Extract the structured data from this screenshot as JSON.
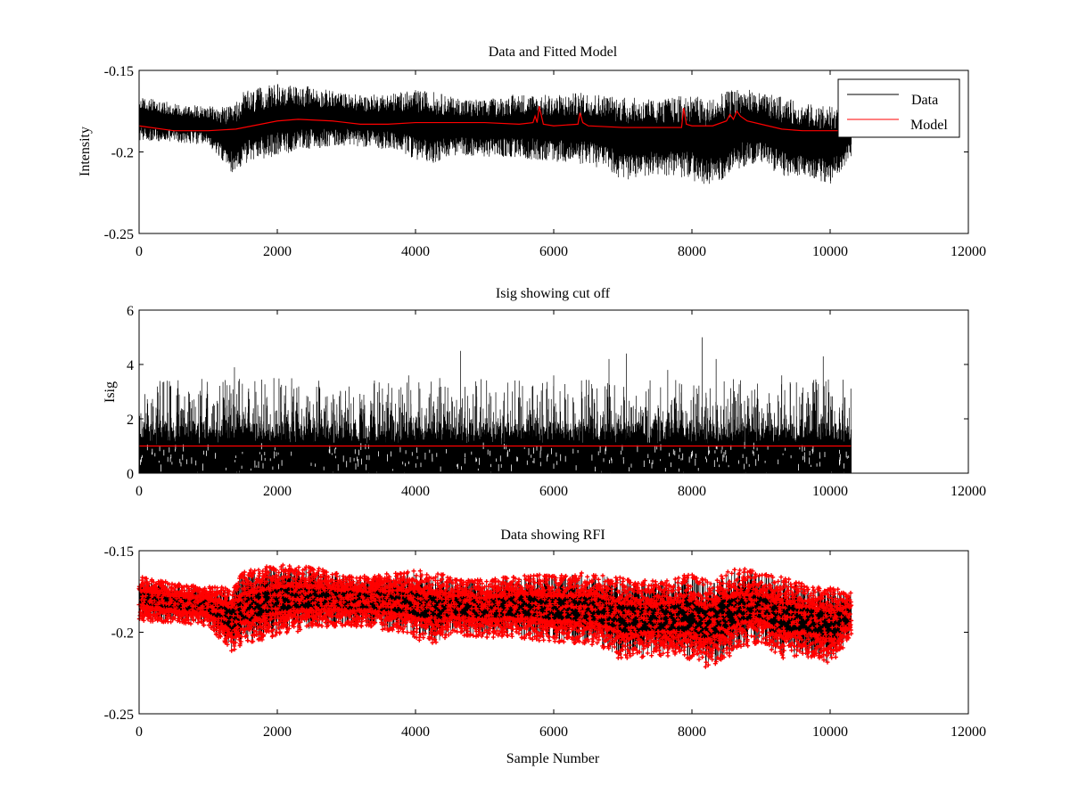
{
  "figure": {
    "background": "#ffffff",
    "colors": {
      "data": "#000000",
      "model": "#ff0000",
      "rfi": "#ff0000",
      "cutoff": "#ff0000"
    }
  },
  "chart_data": [
    {
      "type": "line",
      "title": "Data and Fitted Model",
      "xlabel": "",
      "ylabel": "Intensity",
      "xlim": [
        0,
        12000
      ],
      "ylim": [
        -0.25,
        -0.15
      ],
      "x_ticks": [
        0,
        2000,
        4000,
        6000,
        8000,
        10000,
        12000
      ],
      "x_tick_labels": [
        "0",
        "2000",
        "4000",
        "6000",
        "8000",
        "10000",
        "12000"
      ],
      "y_ticks": [
        -0.25,
        -0.2,
        -0.15
      ],
      "y_tick_labels": [
        "-0.25",
        "-0.2",
        "-0.15"
      ],
      "legend": {
        "placement": "top-right",
        "entries": [
          "Data",
          "Model"
        ]
      },
      "series": [
        {
          "name": "Data",
          "style": "noise-band",
          "n_samples": 10300,
          "x": [
            0,
            500,
            1000,
            1350,
            1500,
            2000,
            2500,
            3000,
            3300,
            3800,
            4000,
            4300,
            4500,
            5000,
            5500,
            6000,
            6500,
            6800,
            7000,
            7500,
            8000,
            8200,
            8500,
            8700,
            9000,
            9300,
            9600,
            10000,
            10300
          ],
          "lower": [
            -0.193,
            -0.194,
            -0.196,
            -0.213,
            -0.208,
            -0.202,
            -0.198,
            -0.196,
            -0.197,
            -0.2,
            -0.205,
            -0.207,
            -0.202,
            -0.203,
            -0.204,
            -0.206,
            -0.208,
            -0.212,
            -0.218,
            -0.214,
            -0.217,
            -0.222,
            -0.216,
            -0.21,
            -0.206,
            -0.216,
            -0.214,
            -0.22,
            -0.203
          ],
          "upper": [
            -0.166,
            -0.17,
            -0.172,
            -0.172,
            -0.163,
            -0.158,
            -0.16,
            -0.164,
            -0.165,
            -0.163,
            -0.162,
            -0.163,
            -0.166,
            -0.168,
            -0.164,
            -0.165,
            -0.163,
            -0.165,
            -0.166,
            -0.168,
            -0.164,
            -0.168,
            -0.163,
            -0.16,
            -0.164,
            -0.166,
            -0.17,
            -0.172,
            -0.175
          ]
        },
        {
          "name": "Model",
          "x": [
            0,
            500,
            1000,
            1400,
            2000,
            2300,
            2800,
            3200,
            3600,
            4000,
            4600,
            5000,
            5500,
            5700,
            5730,
            5760,
            5790,
            5850,
            6000,
            6350,
            6380,
            6420,
            6500,
            7000,
            7500,
            7850,
            7880,
            7920,
            8000,
            8300,
            8500,
            8550,
            8600,
            8650,
            8700,
            8800,
            9000,
            9300,
            9600,
            10300
          ],
          "y": [
            -0.184,
            -0.187,
            -0.187,
            -0.186,
            -0.181,
            -0.18,
            -0.181,
            -0.183,
            -0.183,
            -0.182,
            -0.182,
            -0.182,
            -0.183,
            -0.182,
            -0.178,
            -0.182,
            -0.172,
            -0.183,
            -0.184,
            -0.183,
            -0.176,
            -0.182,
            -0.184,
            -0.185,
            -0.185,
            -0.185,
            -0.173,
            -0.183,
            -0.184,
            -0.184,
            -0.181,
            -0.177,
            -0.18,
            -0.175,
            -0.178,
            -0.181,
            -0.183,
            -0.186,
            -0.187,
            -0.187
          ]
        }
      ]
    },
    {
      "type": "line",
      "title": "Isig showing cut off",
      "xlabel": "",
      "ylabel": "Isig",
      "xlim": [
        0,
        12000
      ],
      "ylim": [
        0,
        6
      ],
      "x_ticks": [
        0,
        2000,
        4000,
        6000,
        8000,
        10000,
        12000
      ],
      "x_tick_labels": [
        "0",
        "2000",
        "4000",
        "6000",
        "8000",
        "10000",
        "12000"
      ],
      "y_ticks": [
        0,
        2,
        4,
        6
      ],
      "y_tick_labels": [
        "0",
        "2",
        "4",
        "6"
      ],
      "series": [
        {
          "name": "Isig",
          "style": "dense-spikes",
          "n_samples": 10300,
          "band_top": 1.0,
          "peaks": [
            {
              "x": 1380,
              "y": 3.9
            },
            {
              "x": 1950,
              "y": 3.5
            },
            {
              "x": 2600,
              "y": 3.4
            },
            {
              "x": 3400,
              "y": 3.3
            },
            {
              "x": 3900,
              "y": 3.6
            },
            {
              "x": 4350,
              "y": 3.5
            },
            {
              "x": 4650,
              "y": 4.5
            },
            {
              "x": 5500,
              "y": 3.4
            },
            {
              "x": 6000,
              "y": 3.6
            },
            {
              "x": 6800,
              "y": 4.2
            },
            {
              "x": 7050,
              "y": 4.4
            },
            {
              "x": 7650,
              "y": 3.8
            },
            {
              "x": 8150,
              "y": 5.0
            },
            {
              "x": 8350,
              "y": 4.2
            },
            {
              "x": 9300,
              "y": 3.6
            },
            {
              "x": 9900,
              "y": 4.3
            }
          ]
        },
        {
          "name": "Cut off",
          "x": [
            0,
            10300
          ],
          "y": [
            1.0,
            1.0
          ]
        }
      ]
    },
    {
      "type": "scatter",
      "title": "Data showing RFI",
      "xlabel": "Sample Number",
      "ylabel": "",
      "xlim": [
        0,
        12000
      ],
      "ylim": [
        -0.25,
        -0.15
      ],
      "x_ticks": [
        0,
        2000,
        4000,
        6000,
        8000,
        10000,
        12000
      ],
      "x_tick_labels": [
        "0",
        "2000",
        "4000",
        "6000",
        "8000",
        "10000",
        "12000"
      ],
      "y_ticks": [
        -0.25,
        -0.2,
        -0.15
      ],
      "y_tick_labels": [
        "-0.25",
        "-0.2",
        "-0.15"
      ],
      "series": [
        {
          "name": "Data",
          "style": "noise-band",
          "n_samples": 10300,
          "x": [
            0,
            500,
            1000,
            1350,
            1500,
            2000,
            2500,
            3000,
            3300,
            3800,
            4000,
            4300,
            4500,
            5000,
            5500,
            6000,
            6500,
            6800,
            7000,
            7500,
            8000,
            8200,
            8500,
            8700,
            9000,
            9300,
            9600,
            10000,
            10300
          ],
          "lower": [
            -0.193,
            -0.194,
            -0.196,
            -0.213,
            -0.208,
            -0.202,
            -0.198,
            -0.196,
            -0.197,
            -0.2,
            -0.205,
            -0.207,
            -0.202,
            -0.203,
            -0.204,
            -0.206,
            -0.208,
            -0.212,
            -0.218,
            -0.214,
            -0.217,
            -0.222,
            -0.216,
            -0.21,
            -0.206,
            -0.216,
            -0.214,
            -0.22,
            -0.203
          ],
          "upper": [
            -0.166,
            -0.17,
            -0.172,
            -0.172,
            -0.163,
            -0.158,
            -0.16,
            -0.164,
            -0.165,
            -0.163,
            -0.162,
            -0.163,
            -0.166,
            -0.168,
            -0.164,
            -0.165,
            -0.163,
            -0.165,
            -0.166,
            -0.168,
            -0.164,
            -0.168,
            -0.163,
            -0.16,
            -0.164,
            -0.166,
            -0.17,
            -0.172,
            -0.175
          ]
        },
        {
          "name": "RFI",
          "style": "markers",
          "marker": "+"
        }
      ]
    }
  ]
}
